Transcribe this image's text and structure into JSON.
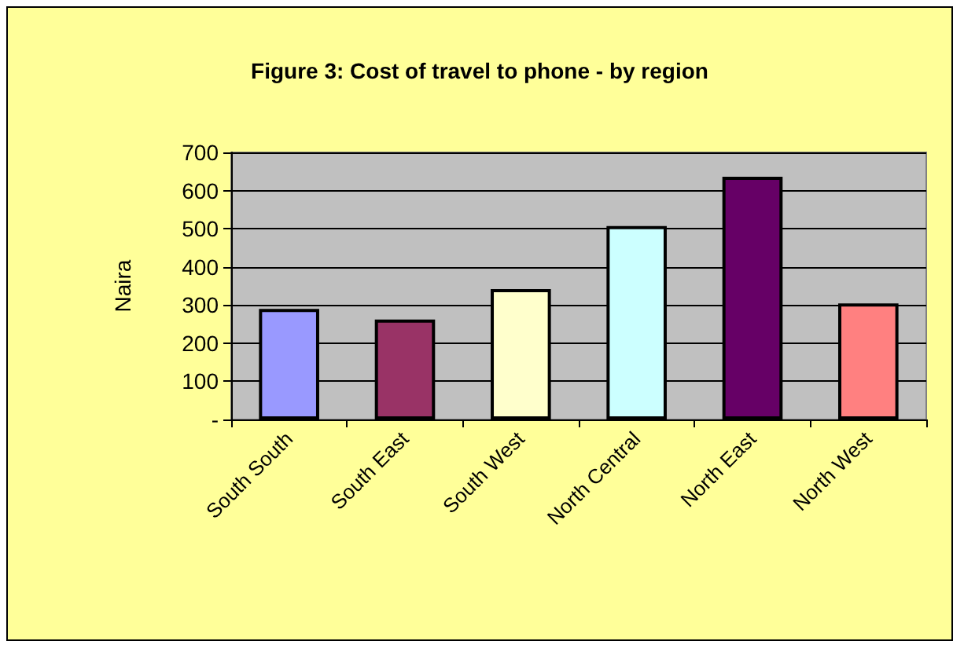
{
  "chart_data": {
    "type": "bar",
    "title": "Figure 3: Cost of travel to phone - by region",
    "ylabel": "Naira",
    "categories": [
      "South South",
      "South East",
      "South West",
      "North Central",
      "North East",
      "North West"
    ],
    "values": [
      290,
      262,
      342,
      507,
      636,
      304
    ],
    "colors": [
      "#9999ff",
      "#993366",
      "#ffffcc",
      "#ccffff",
      "#660066",
      "#ff8080"
    ],
    "ylim": [
      0,
      700
    ],
    "yticks": [
      {
        "value": 0,
        "label": "-"
      },
      100,
      200,
      300,
      400,
      500,
      600,
      700
    ],
    "grid": "y"
  }
}
